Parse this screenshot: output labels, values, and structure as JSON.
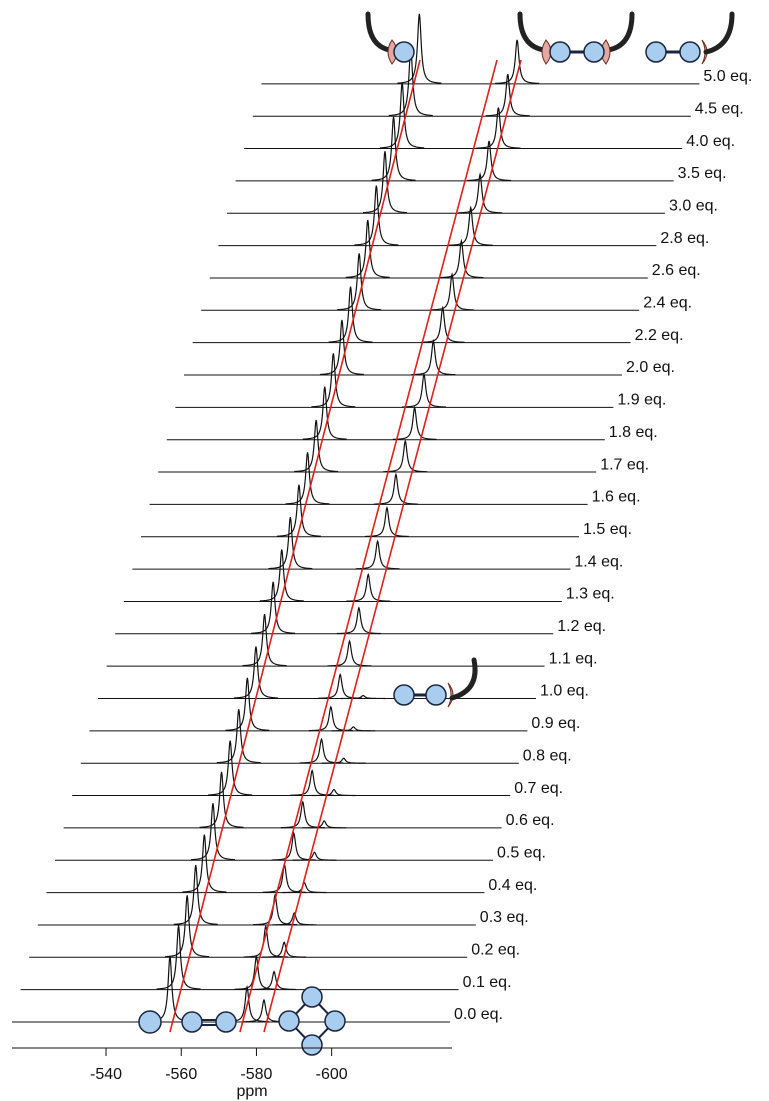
{
  "chart_data": {
    "type": "stacked-spectra",
    "xlabel": "ppm",
    "xlim": [
      -515,
      -632
    ],
    "xticks": [
      -540,
      -560,
      -580,
      -600
    ],
    "labels": [
      "0.0 eq.",
      "0.1 eq.",
      "0.2 eq.",
      "0.3 eq.",
      "0.4 eq.",
      "0.5 eq.",
      "0.6 eq.",
      "0.7 eq.",
      "0.8 eq.",
      "0.9 eq.",
      "1.0 eq.",
      "1.1 eq.",
      "1.2 eq.",
      "1.3 eq.",
      "1.4 eq.",
      "1.5 eq.",
      "1.6 eq.",
      "1.7 eq.",
      "1.8 eq.",
      "1.9 eq.",
      "2.0 eq.",
      "2.2 eq.",
      "2.4 eq.",
      "2.6 eq.",
      "2.8 eq.",
      "3.0 eq.",
      "3.5 eq.",
      "4.0 eq.",
      "4.5 eq.",
      "5.0 eq."
    ],
    "series": [
      {
        "color": "#111111",
        "ppm": [
          -557,
          -557,
          -557,
          -557,
          -557,
          -557,
          -557,
          -557,
          -557,
          -557,
          -557,
          -557,
          -557,
          -557,
          -557,
          -557,
          -557,
          -557,
          -557,
          -557,
          -557,
          -557,
          -557,
          -557,
          -557,
          -557,
          -557,
          -557,
          -557,
          -557
        ],
        "intensity": [
          66,
          64,
          62,
          60,
          58,
          57,
          56,
          55,
          54,
          53,
          52,
          52,
          52,
          52,
          52,
          52,
          52,
          52,
          53,
          54,
          55,
          56,
          57,
          58,
          60,
          62,
          64,
          66,
          68,
          70
        ]
      },
      {
        "color": "#111111",
        "ppm": [
          -577.5,
          -577.7,
          -577.9,
          -578.1,
          -578.3,
          -578.5,
          -578.6,
          -578.8,
          -579.0,
          -579.2,
          -579.4,
          -579.6,
          -579.8,
          -580.0,
          -580.2,
          -580.4,
          -580.5,
          -580.7,
          -580.9,
          -581.1,
          -581.3,
          -581.5,
          -581.7,
          -581.9,
          -582.1,
          -582.3,
          -582.4,
          -582.6,
          -582.8,
          -583.0
        ],
        "intensity": [
          35,
          33,
          31,
          30,
          28,
          27,
          26,
          25,
          24,
          24,
          24,
          25,
          26,
          27,
          28,
          29,
          30,
          31,
          32,
          33,
          34,
          35,
          36,
          37,
          38,
          39,
          40,
          41,
          42,
          44
        ]
      },
      {
        "color": "#111111",
        "ppm": [
          -582.0,
          -582.4,
          -582.8,
          -583.2,
          -583.6,
          -584.0,
          -584.3,
          -584.6,
          -584.9,
          -585.2,
          -585.5,
          null,
          null,
          null,
          null,
          null,
          null,
          null,
          null,
          null,
          null,
          null,
          null,
          null,
          null,
          null,
          null,
          null,
          null,
          null
        ],
        "intensity": [
          22,
          18,
          15,
          12,
          10,
          8,
          7,
          6,
          5,
          4,
          3,
          null,
          null,
          null,
          null,
          null,
          null,
          null,
          null,
          null,
          null,
          null,
          null,
          null,
          null,
          null,
          null,
          null,
          null,
          null
        ]
      }
    ]
  }
}
